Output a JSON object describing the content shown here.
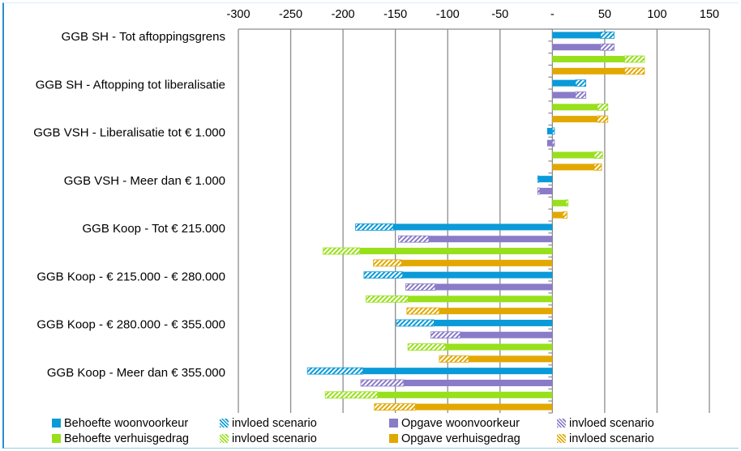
{
  "chart_data": {
    "type": "bar",
    "orientation": "horizontal",
    "xlim": [
      -300,
      150
    ],
    "x_ticks": [
      -300,
      -250,
      -200,
      -150,
      -100,
      -50,
      0,
      50,
      100,
      150
    ],
    "x_tick_labels": [
      "-300",
      "-250",
      "-200",
      "-150",
      "-100",
      "-50",
      "-",
      "50",
      "100",
      "150"
    ],
    "x_axis_position": "top",
    "grid": true,
    "legend_position": "bottom",
    "categories": [
      "GGB SH - Tot aftoppingsgrens",
      "GGB SH -  Aftopping tot liberalisatie",
      "GGB VSH - Liberalisatie tot € 1.000",
      "GGB VSH - Meer dan € 1.000",
      "GGB Koop - Tot € 215.000",
      "GGB Koop - € 215.000 - € 280.000",
      "GGB Koop - € 280.000 - € 355.000",
      "GGB Koop - Meer dan € 355.000"
    ],
    "series": [
      {
        "name": "Behoefte woonvoorkeur",
        "scenario_name": "invloed scenario",
        "color": "#0a9ad8",
        "values": [
          46,
          22,
          -5,
          -13,
          -152,
          -143,
          -113,
          -181
        ],
        "with_scenario": [
          59,
          32,
          2,
          -14,
          -188,
          -180,
          -149,
          -234
        ]
      },
      {
        "name": "Opgave woonvoorkeur",
        "scenario_name": "invloed scenario",
        "color": "#8a7bc8",
        "values": [
          46,
          22,
          -5,
          -12,
          -118,
          -112,
          -88,
          -142
        ],
        "with_scenario": [
          59,
          32,
          2,
          -14,
          -147,
          -140,
          -116,
          -183
        ]
      },
      {
        "name": "Behoefte verhuisgedrag",
        "scenario_name": "invloed scenario",
        "color": "#98e01c",
        "values": [
          69,
          43,
          40,
          13,
          -184,
          -138,
          -102,
          -167
        ],
        "with_scenario": [
          88,
          53,
          48,
          15,
          -219,
          -178,
          -138,
          -217
        ]
      },
      {
        "name": "Opgave verhuisgedrag",
        "scenario_name": "invloed scenario",
        "color": "#e2a800",
        "values": [
          69,
          43,
          40,
          10,
          -144,
          -108,
          -80,
          -131
        ],
        "with_scenario": [
          88,
          53,
          47,
          14,
          -171,
          -139,
          -108,
          -170
        ]
      }
    ]
  }
}
